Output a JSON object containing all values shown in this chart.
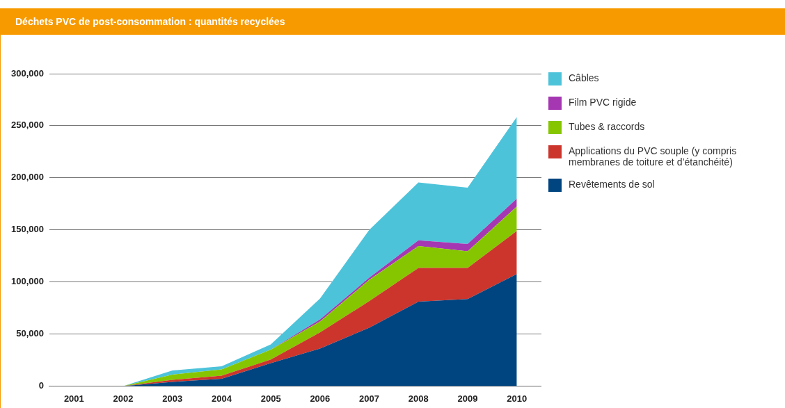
{
  "chart_data": {
    "type": "area",
    "title": "Déchets PVC de post-consommation : quantités recyclées",
    "categories": [
      "2001",
      "2002",
      "2003",
      "2004",
      "2005",
      "2006",
      "2007",
      "2008",
      "2009",
      "2010"
    ],
    "stacked": true,
    "series": [
      {
        "name": "Revêtements de sol",
        "color": "#004480",
        "values": [
          null,
          0,
          4000,
          7000,
          22000,
          36000,
          56000,
          81000,
          83500,
          107500
        ]
      },
      {
        "name": "Applications du PVC souple (y compris membranes de toiture et d’étanchéité)",
        "color": "#cc352c",
        "values": [
          null,
          0,
          2000,
          3000,
          3500,
          15500,
          25500,
          32500,
          30000,
          41500
        ]
      },
      {
        "name": "Tubes & raccords",
        "color": "#86c600",
        "values": [
          null,
          0,
          5000,
          6000,
          9500,
          10500,
          20500,
          21000,
          16000,
          23500
        ]
      },
      {
        "name": "Film PVC rigide",
        "color": "#a637b3",
        "values": [
          null,
          0,
          0,
          0,
          0,
          2000,
          2000,
          5500,
          7000,
          7500
        ]
      },
      {
        "name": "Câbles",
        "color": "#4dc3da",
        "values": [
          null,
          0,
          4000,
          3000,
          5000,
          20000,
          46000,
          55500,
          54000,
          78500
        ]
      }
    ],
    "ylim": [
      0,
      300000
    ],
    "yticks": [
      {
        "value": 0,
        "label": "0"
      },
      {
        "value": 50000,
        "label": "50,000"
      },
      {
        "value": 100000,
        "label": "100,000"
      },
      {
        "value": 150000,
        "label": "150,000"
      },
      {
        "value": 200000,
        "label": "200,000"
      },
      {
        "value": 250000,
        "label": "250,000"
      },
      {
        "value": 300000,
        "label": "300,000"
      }
    ],
    "grid": "y",
    "legend": "right"
  }
}
